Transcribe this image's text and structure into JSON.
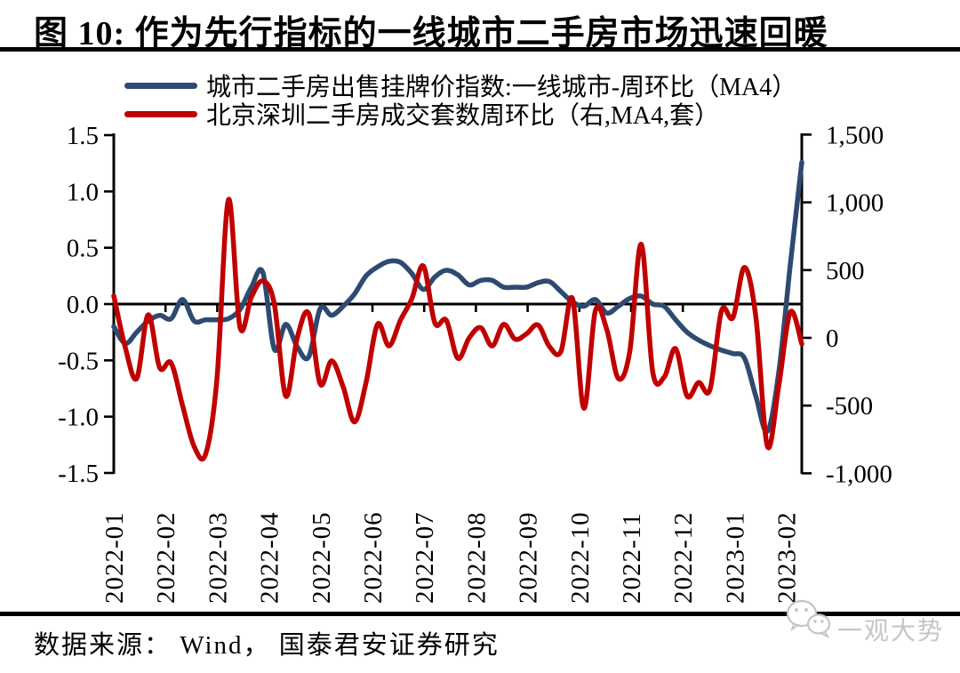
{
  "title": "图 10: 作为先行指标的一线城市二手房市场迅速回暖",
  "legend": {
    "items": [
      {
        "label": "城市二手房出售挂牌价指数:一线城市-周环比（MA4）",
        "color": "#2e4a71",
        "icon": "blue-line-swatch"
      },
      {
        "label": "北京深圳二手房成交套数周环比（右,MA4,套）",
        "color": "#c00000",
        "icon": "red-line-swatch"
      }
    ]
  },
  "footer": {
    "source": "数据来源： Wind， 国泰君安证券研究",
    "watermark_text": "一观大势",
    "watermark_icon": "wechat-icon",
    "watermark_color": "#c6c6c6"
  },
  "chart_data": {
    "type": "line",
    "frequency": "weekly (MA4), Jan 2022 - late Feb 2023",
    "x_tick_labels": [
      "2022-01",
      "2022-02",
      "2022-03",
      "2022-04",
      "2022-05",
      "2022-06",
      "2022-07",
      "2022-08",
      "2022-09",
      "2022-10",
      "2022-11",
      "2022-12",
      "2023-01",
      "2023-02"
    ],
    "grid": false,
    "legend_position": "top-left",
    "zero_baseline": true,
    "left_axis": {
      "ylim": [
        -1.5,
        1.5
      ],
      "tick_values": [
        1.5,
        1.0,
        0.5,
        0.0,
        -0.5,
        -1.0,
        -1.5
      ],
      "tick_labels": [
        "1.5",
        "1.0",
        "0.5",
        "0.0",
        "-0.5",
        "-1.0",
        "-1.5"
      ]
    },
    "right_axis": {
      "ylim": [
        -1000,
        1500
      ],
      "tick_values": [
        1500,
        1000,
        500,
        0,
        -500,
        -1000
      ],
      "tick_labels": [
        "1,500",
        "1,000",
        "500",
        "0",
        "-500",
        "-1,000"
      ]
    },
    "series": [
      {
        "name": "城市二手房出售挂牌价指数:一线城市-周环比（MA4）",
        "axis": "left",
        "color": "#2e4a71",
        "values": [
          -0.2,
          -0.35,
          -0.25,
          -0.15,
          -0.1,
          -0.13,
          0.04,
          -0.15,
          -0.14,
          -0.14,
          -0.13,
          -0.05,
          0.15,
          0.28,
          -0.4,
          -0.18,
          -0.38,
          -0.47,
          -0.04,
          -0.1,
          -0.02,
          0.09,
          0.25,
          0.33,
          0.38,
          0.37,
          0.27,
          0.13,
          0.24,
          0.3,
          0.26,
          0.17,
          0.21,
          0.21,
          0.15,
          0.15,
          0.15,
          0.19,
          0.2,
          0.11,
          0.02,
          -0.02,
          0.04,
          -0.08,
          -0.02,
          0.05,
          0.07,
          0.0,
          -0.02,
          -0.14,
          -0.25,
          -0.32,
          -0.37,
          -0.41,
          -0.44,
          -0.48,
          -0.82,
          -1.13,
          -0.6,
          0.35,
          1.26
        ]
      },
      {
        "name": "北京深圳二手房成交套数周环比（右,MA4,套）",
        "axis": "right",
        "color": "#c00000",
        "values": [
          310,
          -70,
          -300,
          170,
          -220,
          -185,
          -500,
          -800,
          -860,
          -300,
          1020,
          80,
          300,
          420,
          250,
          -430,
          0,
          180,
          -340,
          -170,
          -360,
          -620,
          -330,
          100,
          -60,
          130,
          290,
          530,
          110,
          130,
          -150,
          0,
          75,
          -60,
          100,
          -10,
          30,
          95,
          -65,
          -100,
          290,
          -520,
          200,
          60,
          -300,
          -100,
          690,
          -250,
          -290,
          -80,
          -430,
          -330,
          -380,
          200,
          150,
          520,
          150,
          -800,
          -350,
          190,
          -45
        ]
      }
    ]
  }
}
